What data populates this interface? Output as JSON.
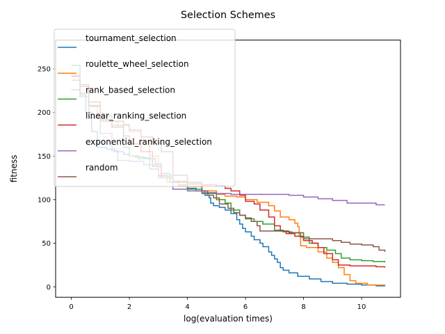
{
  "chart_data": {
    "type": "line",
    "title": "Selection Schemes",
    "xlabel": "log(evaluation times)",
    "ylabel": "fitness",
    "xlim": [
      -0.54,
      11.34
    ],
    "ylim": [
      -12,
      283
    ],
    "xticks": [
      0,
      2,
      4,
      6,
      8,
      10
    ],
    "yticks": [
      0,
      50,
      100,
      150,
      200,
      250
    ],
    "grid": false,
    "legend_position": "top-left",
    "series": [
      {
        "name": "tournament_selection",
        "color": "#1f77b4",
        "points": [
          [
            0.0,
            226
          ],
          [
            0.3,
            220
          ],
          [
            0.5,
            200
          ],
          [
            0.7,
            178
          ],
          [
            0.9,
            160
          ],
          [
            1.2,
            158
          ],
          [
            1.5,
            155
          ],
          [
            1.8,
            152
          ],
          [
            2.0,
            150
          ],
          [
            2.2,
            149
          ],
          [
            2.5,
            148
          ],
          [
            2.7,
            147
          ],
          [
            2.9,
            141
          ],
          [
            3.1,
            130
          ],
          [
            3.4,
            120
          ],
          [
            3.7,
            116
          ],
          [
            4.0,
            113
          ],
          [
            4.3,
            110
          ],
          [
            4.6,
            105
          ],
          [
            4.75,
            102
          ],
          [
            4.8,
            96
          ],
          [
            4.9,
            93
          ],
          [
            5.1,
            91
          ],
          [
            5.3,
            88
          ],
          [
            5.5,
            84
          ],
          [
            5.7,
            77
          ],
          [
            5.8,
            72
          ],
          [
            5.9,
            67
          ],
          [
            6.0,
            63
          ],
          [
            6.2,
            58
          ],
          [
            6.3,
            54
          ],
          [
            6.5,
            50
          ],
          [
            6.6,
            46
          ],
          [
            6.8,
            40
          ],
          [
            6.9,
            36
          ],
          [
            7.0,
            32
          ],
          [
            7.1,
            28
          ],
          [
            7.2,
            22
          ],
          [
            7.3,
            19
          ],
          [
            7.5,
            16
          ],
          [
            7.8,
            12
          ],
          [
            8.2,
            9
          ],
          [
            8.6,
            6
          ],
          [
            9.0,
            4
          ],
          [
            9.5,
            3
          ],
          [
            10.0,
            2
          ],
          [
            10.5,
            1
          ],
          [
            10.8,
            0.7
          ]
        ]
      },
      {
        "name": "roulette_wheel_selection",
        "color": "#ff7f0e",
        "points": [
          [
            0.0,
            243
          ],
          [
            0.3,
            230
          ],
          [
            0.6,
            208
          ],
          [
            0.9,
            196
          ],
          [
            1.2,
            190
          ],
          [
            1.6,
            185
          ],
          [
            2.0,
            178
          ],
          [
            2.4,
            167
          ],
          [
            2.7,
            150
          ],
          [
            3.0,
            128
          ],
          [
            3.3,
            120
          ],
          [
            3.7,
            117
          ],
          [
            4.0,
            115
          ],
          [
            4.5,
            110
          ],
          [
            5.0,
            106
          ],
          [
            5.3,
            104
          ],
          [
            5.7,
            103
          ],
          [
            6.0,
            100
          ],
          [
            6.4,
            97
          ],
          [
            6.8,
            93
          ],
          [
            7.0,
            87
          ],
          [
            7.2,
            80
          ],
          [
            7.5,
            77
          ],
          [
            7.7,
            73
          ],
          [
            7.8,
            69
          ],
          [
            7.85,
            58
          ],
          [
            7.9,
            47
          ],
          [
            8.1,
            45
          ],
          [
            8.5,
            40
          ],
          [
            8.8,
            33
          ],
          [
            9.0,
            28
          ],
          [
            9.2,
            22
          ],
          [
            9.4,
            14
          ],
          [
            9.6,
            7
          ],
          [
            9.8,
            4
          ],
          [
            10.2,
            2
          ],
          [
            10.8,
            1
          ]
        ]
      },
      {
        "name": "rank_based_selection",
        "color": "#2ca02c",
        "points": [
          [
            0.0,
            254
          ],
          [
            0.3,
            232
          ],
          [
            0.6,
            208
          ],
          [
            1.0,
            192
          ],
          [
            1.4,
            185
          ],
          [
            1.8,
            160
          ],
          [
            2.0,
            150
          ],
          [
            2.3,
            147
          ],
          [
            2.7,
            135
          ],
          [
            3.0,
            127
          ],
          [
            3.5,
            120
          ],
          [
            4.0,
            112
          ],
          [
            4.5,
            107
          ],
          [
            5.0,
            100
          ],
          [
            5.3,
            96
          ],
          [
            5.5,
            88
          ],
          [
            5.8,
            82
          ],
          [
            6.0,
            78
          ],
          [
            6.3,
            75
          ],
          [
            6.6,
            72
          ],
          [
            7.0,
            65
          ],
          [
            7.3,
            63
          ],
          [
            7.6,
            62
          ],
          [
            7.9,
            57
          ],
          [
            8.2,
            50
          ],
          [
            8.5,
            45
          ],
          [
            8.8,
            42
          ],
          [
            9.1,
            38
          ],
          [
            9.3,
            33
          ],
          [
            9.6,
            31
          ],
          [
            10.0,
            30
          ],
          [
            10.4,
            29
          ],
          [
            10.8,
            28
          ]
        ]
      },
      {
        "name": "linear_ranking_selection",
        "color": "#d62728",
        "points": [
          [
            0.0,
            241
          ],
          [
            0.3,
            230
          ],
          [
            0.6,
            212
          ],
          [
            1.0,
            190
          ],
          [
            1.4,
            183
          ],
          [
            1.8,
            173
          ],
          [
            2.0,
            164
          ],
          [
            2.4,
            155
          ],
          [
            2.8,
            138
          ],
          [
            3.1,
            125
          ],
          [
            3.5,
            121
          ],
          [
            4.0,
            118
          ],
          [
            4.5,
            117
          ],
          [
            5.0,
            116
          ],
          [
            5.3,
            113
          ],
          [
            5.5,
            110
          ],
          [
            5.8,
            105
          ],
          [
            6.0,
            98
          ],
          [
            6.3,
            95
          ],
          [
            6.5,
            88
          ],
          [
            6.8,
            80
          ],
          [
            7.0,
            70
          ],
          [
            7.2,
            64
          ],
          [
            7.4,
            61
          ],
          [
            7.7,
            58
          ],
          [
            8.0,
            53
          ],
          [
            8.3,
            50
          ],
          [
            8.5,
            45
          ],
          [
            8.7,
            38
          ],
          [
            9.0,
            31
          ],
          [
            9.2,
            25
          ],
          [
            9.6,
            24
          ],
          [
            10.2,
            24
          ],
          [
            10.5,
            23
          ],
          [
            10.8,
            22
          ]
        ]
      },
      {
        "name": "exponential_ranking_selection",
        "color": "#9467bd",
        "points": [
          [
            0.0,
            242
          ],
          [
            0.3,
            218
          ],
          [
            0.6,
            194
          ],
          [
            1.0,
            176
          ],
          [
            1.4,
            156
          ],
          [
            1.6,
            145
          ],
          [
            2.0,
            144
          ],
          [
            2.5,
            140
          ],
          [
            3.0,
            125
          ],
          [
            3.5,
            112
          ],
          [
            4.0,
            110
          ],
          [
            4.5,
            108
          ],
          [
            5.0,
            107
          ],
          [
            5.5,
            106
          ],
          [
            6.0,
            106
          ],
          [
            6.5,
            106
          ],
          [
            7.0,
            106
          ],
          [
            7.5,
            105
          ],
          [
            8.0,
            103
          ],
          [
            8.5,
            101
          ],
          [
            9.0,
            99
          ],
          [
            9.5,
            96
          ],
          [
            10.0,
            96
          ],
          [
            10.5,
            94
          ],
          [
            10.8,
            94
          ]
        ]
      },
      {
        "name": "random",
        "color": "#8c564b",
        "points": [
          [
            0.0,
            237
          ],
          [
            0.3,
            222
          ],
          [
            0.6,
            207
          ],
          [
            1.0,
            196
          ],
          [
            1.4,
            190
          ],
          [
            1.8,
            186
          ],
          [
            2.0,
            180
          ],
          [
            2.4,
            172
          ],
          [
            2.8,
            165
          ],
          [
            3.1,
            155
          ],
          [
            3.5,
            128
          ],
          [
            4.0,
            120
          ],
          [
            4.5,
            110
          ],
          [
            4.7,
            105
          ],
          [
            4.9,
            102
          ],
          [
            5.1,
            95
          ],
          [
            5.4,
            90
          ],
          [
            5.6,
            85
          ],
          [
            5.8,
            82
          ],
          [
            6.0,
            79
          ],
          [
            6.2,
            75
          ],
          [
            6.4,
            70
          ],
          [
            6.5,
            64
          ],
          [
            7.0,
            64
          ],
          [
            7.5,
            62
          ],
          [
            8.0,
            55
          ],
          [
            8.5,
            55
          ],
          [
            9.0,
            53
          ],
          [
            9.3,
            51
          ],
          [
            9.6,
            49
          ],
          [
            10.0,
            48
          ],
          [
            10.4,
            46
          ],
          [
            10.6,
            42
          ],
          [
            10.8,
            40
          ]
        ]
      }
    ]
  }
}
